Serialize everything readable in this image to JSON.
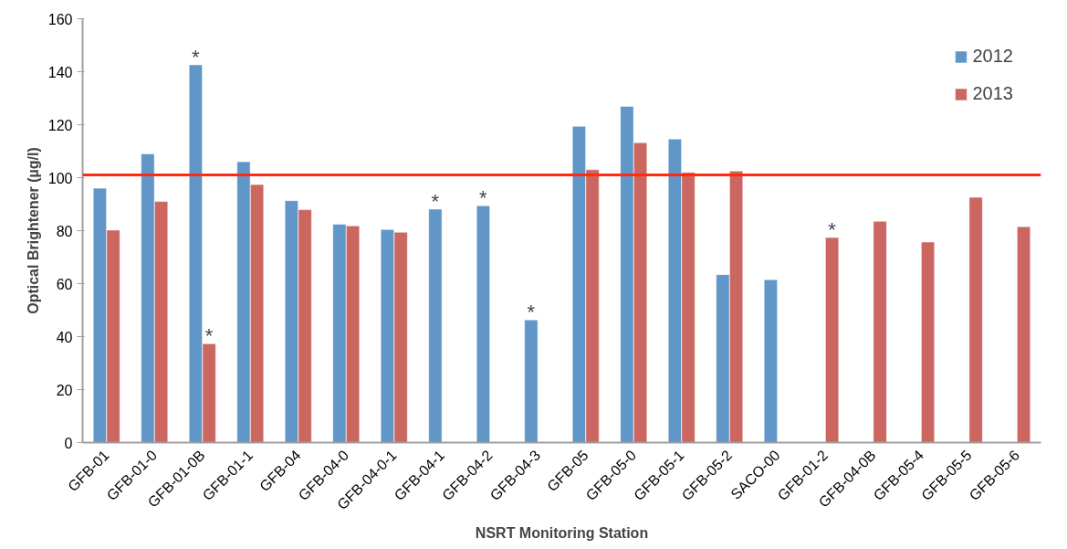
{
  "chart_data": {
    "type": "bar",
    "xlabel": "NSRT Monitoring Station",
    "ylabel": "Optical Brightener (µg/l)",
    "categories": [
      "GFB-01",
      "GFB-01-0",
      "GFB-01-0B",
      "GFB-01-1",
      "GFB-04",
      "GFB-04-0",
      "GFB-04-0-1",
      "GFB-04-1",
      "GFB-04-2",
      "GFB-04-3",
      "GFB-05",
      "GFB-05-0",
      "GFB-05-1",
      "GFB-05-2",
      "SACO-00",
      "GFB-01-2",
      "GFB-04-0B",
      "GFB-05-4",
      "GFB-05-5",
      "GFB-05-6"
    ],
    "series": [
      {
        "name": "2012",
        "color": "#6096c8",
        "values": [
          96,
          109,
          142.6,
          106,
          91.3,
          82.4,
          80.4,
          88.1,
          89.4,
          46.3,
          119.4,
          126.9,
          114.6,
          63.4,
          61.5,
          null,
          null,
          null,
          null,
          null
        ]
      },
      {
        "name": "2013",
        "color": "#cc6660",
        "values": [
          80.2,
          91,
          37.3,
          97.4,
          87.9,
          81.8,
          79.4,
          null,
          null,
          null,
          103,
          113.2,
          102,
          102.5,
          null,
          77.4,
          83.5,
          75.7,
          92.6,
          81.5
        ]
      }
    ],
    "ylim": [
      0,
      160
    ],
    "yticks": [
      0,
      20,
      40,
      60,
      80,
      100,
      120,
      140,
      160
    ],
    "grid": false,
    "legend": "top right",
    "ref_lines": [
      {
        "axis": "y",
        "value": 101,
        "color": "#ff2a10"
      }
    ],
    "annotations": [
      {
        "text": "*",
        "x": "GFB-01-0B",
        "y": 142.6
      },
      {
        "text": "*",
        "x": "GFB-01-0B",
        "y": 37.3
      },
      {
        "text": "*",
        "x": "GFB-04-1",
        "y": 88.1
      },
      {
        "text": "*",
        "x": "GFB-04-2",
        "y": 89.4
      },
      {
        "text": "*",
        "x": "GFB-04-3",
        "y": 46.3
      },
      {
        "text": "*",
        "x": "GFB-01-2",
        "y": 77.4
      }
    ]
  }
}
